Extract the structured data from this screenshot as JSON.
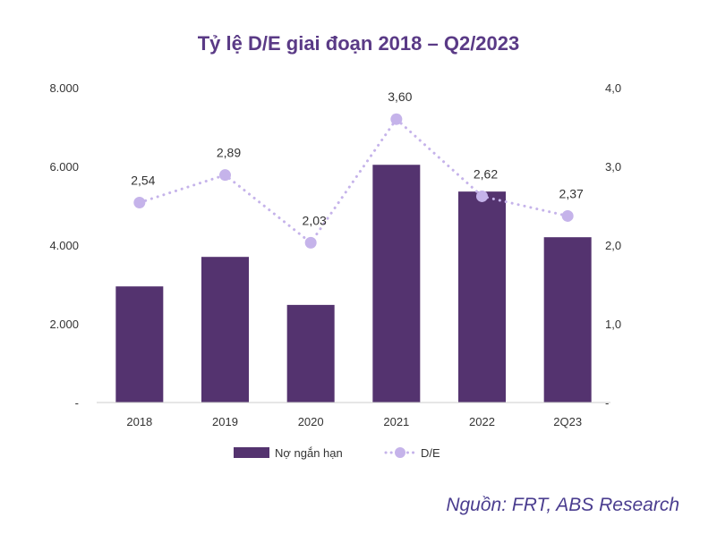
{
  "chart_data": {
    "type": "bar",
    "title": "Tỷ lệ D/E giai đoạn 2018 – Q2/2023",
    "categories": [
      "2018",
      "2019",
      "2020",
      "2021",
      "2022",
      "2Q23"
    ],
    "series": [
      {
        "name": "Nợ ngắn hạn",
        "type": "bar",
        "axis": "left",
        "color": "#54336f",
        "values": [
          2950,
          3700,
          2480,
          6040,
          5360,
          4200
        ]
      },
      {
        "name": "D/E",
        "type": "line",
        "axis": "right",
        "color": "#c5b3ea",
        "line_style": "dotted",
        "values": [
          2.54,
          2.89,
          2.03,
          3.6,
          2.62,
          2.37
        ],
        "labels": [
          "2,54",
          "2,89",
          "2,03",
          "3,60",
          "2,62",
          "2,37"
        ]
      }
    ],
    "y_left": {
      "min": 0,
      "max": 8000,
      "ticks": [
        0,
        2000,
        4000,
        6000,
        8000
      ],
      "tick_labels": [
        "-",
        "2.000",
        "4.000",
        "6.000",
        "8.000"
      ]
    },
    "y_right": {
      "min": 0,
      "max": 4,
      "ticks": [
        0,
        1,
        2,
        3,
        4
      ],
      "tick_labels": [
        "-",
        "1,0",
        "2,0",
        "3,0",
        "4,0"
      ]
    },
    "grid": false,
    "legend_position": "bottom"
  },
  "source": "Nguồn: FRT, ABS Research"
}
